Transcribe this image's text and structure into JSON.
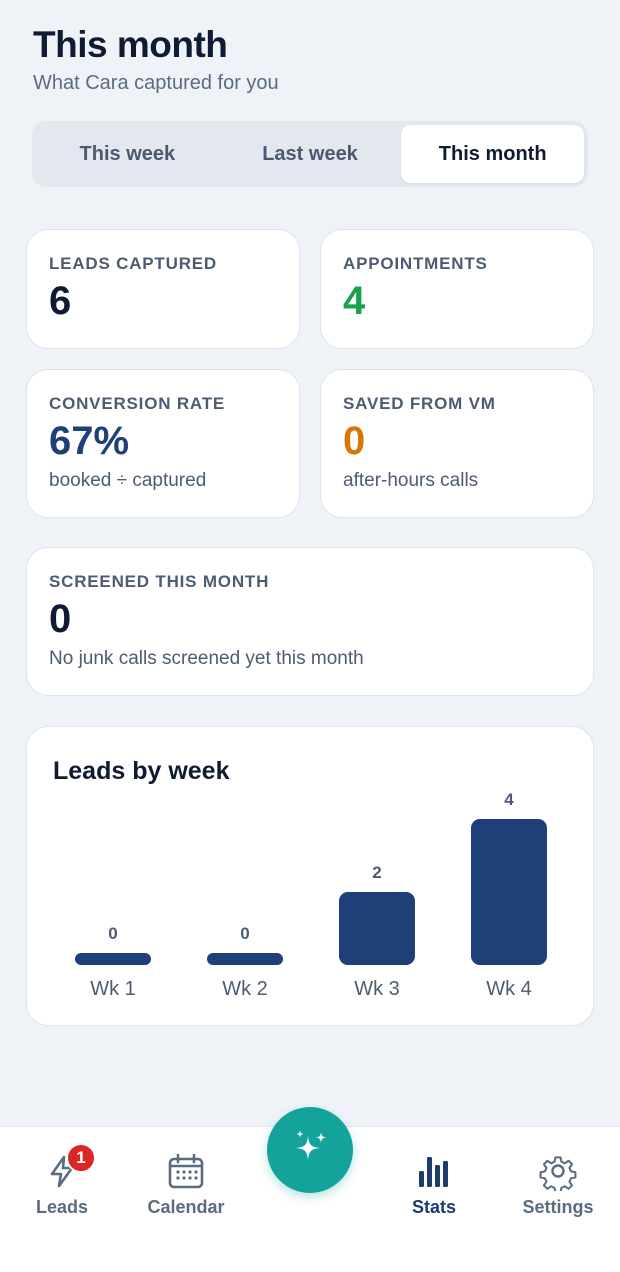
{
  "header": {
    "title": "This month",
    "subtitle": "What Cara captured for you"
  },
  "period_tabs": [
    {
      "label": "This week",
      "active": false
    },
    {
      "label": "Last week",
      "active": false
    },
    {
      "label": "This month",
      "active": true
    }
  ],
  "stats": {
    "leads": {
      "label": "LEADS CAPTURED",
      "value": "6"
    },
    "appointments": {
      "label": "APPOINTMENTS",
      "value": "4"
    },
    "conversion": {
      "label": "CONVERSION RATE",
      "value": "67%",
      "note": "booked ÷ captured"
    },
    "saved": {
      "label": "SAVED FROM VM",
      "value": "0",
      "note": "after-hours calls"
    },
    "screened": {
      "label": "SCREENED THIS MONTH",
      "value": "0",
      "note": "No junk calls screened yet this month"
    }
  },
  "colors": {
    "accent_navy": "#1e3f78",
    "green": "#16a34a",
    "orange": "#d97706",
    "teal": "#14a39a",
    "badge_red": "#dc2626"
  },
  "chart_data": {
    "type": "bar",
    "title": "Leads by week",
    "categories": [
      "Wk 1",
      "Wk 2",
      "Wk 3",
      "Wk 4"
    ],
    "values": [
      0,
      0,
      2,
      4
    ],
    "ylim": [
      0,
      4
    ],
    "grid": false
  },
  "tabbar": {
    "items": [
      {
        "label": "Leads",
        "icon": "lightning-icon",
        "badge": "1"
      },
      {
        "label": "Calendar",
        "icon": "calendar-icon"
      },
      {
        "label": "Stats",
        "icon": "bar-chart-icon",
        "active": true
      },
      {
        "label": "Settings",
        "icon": "gear-icon"
      }
    ],
    "fab_icon": "sparkles-icon"
  }
}
